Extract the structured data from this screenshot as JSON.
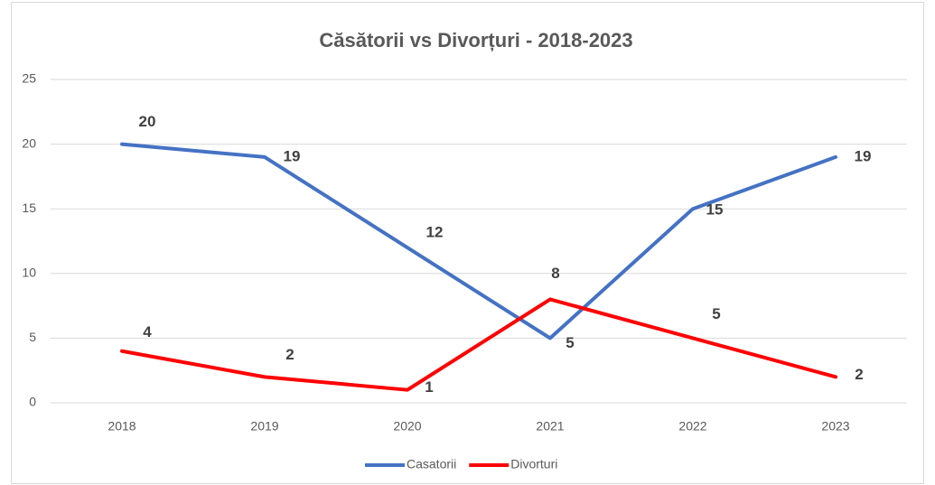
{
  "chart_data": {
    "type": "line",
    "title": "Căsătorii vs Divorțuri - 2018-2023",
    "categories": [
      "2018",
      "2019",
      "2020",
      "2021",
      "2022",
      "2023"
    ],
    "series": [
      {
        "name": "Casatorii",
        "color": "#4472c4",
        "values": [
          20,
          19,
          12,
          5,
          15,
          19
        ]
      },
      {
        "name": "Divorturi",
        "color": "#ff0000",
        "values": [
          4,
          2,
          1,
          8,
          5,
          2
        ]
      }
    ],
    "ylim": [
      0,
      25
    ],
    "yticks": [
      0,
      5,
      10,
      15,
      20,
      25
    ],
    "grid": true,
    "legend": "bottom"
  }
}
